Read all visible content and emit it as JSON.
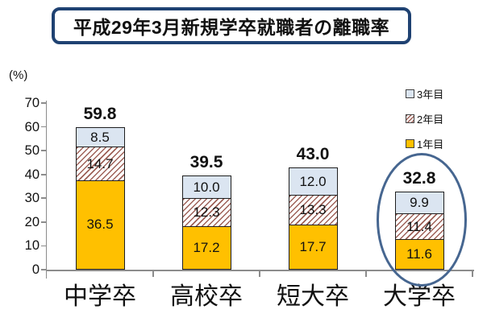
{
  "chart_data": {
    "type": "bar",
    "stacked": true,
    "title": "平成29年3月新規学卒就職者の離職率",
    "ylabel": "(%)",
    "ylim": [
      0,
      70
    ],
    "yticks": [
      "0",
      "10",
      "20",
      "30",
      "40",
      "50",
      "60",
      "70"
    ],
    "categories": [
      "中学卒",
      "高校卒",
      "短大卒",
      "大学卒"
    ],
    "series": [
      {
        "name": "1年目",
        "values": [
          36.5,
          17.2,
          17.7,
          11.6
        ],
        "color": "#FFC000",
        "pattern": "solid"
      },
      {
        "name": "2年目",
        "values": [
          14.7,
          12.3,
          13.3,
          11.4
        ],
        "color": "#9E6158",
        "pattern": "diagonal-hatch",
        "pattern_bg": "#FFFFFF"
      },
      {
        "name": "3年目",
        "values": [
          8.5,
          10.0,
          12.0,
          9.9
        ],
        "color": "#DBE5F1",
        "pattern": "solid"
      }
    ],
    "total_labels": [
      "59.8",
      "39.5",
      "43.0",
      "32.8"
    ],
    "legend": {
      "position": "right",
      "items": [
        "3年目",
        "2年目",
        "1年目"
      ]
    },
    "grid": false,
    "annotation": {
      "type": "ellipse",
      "category": "大学卒",
      "color": "#466690"
    },
    "colors": {
      "axis": "#8C8C8C",
      "bar_border": "#1F1F1F",
      "title_border": "#1F4272",
      "text": "#111111"
    }
  }
}
